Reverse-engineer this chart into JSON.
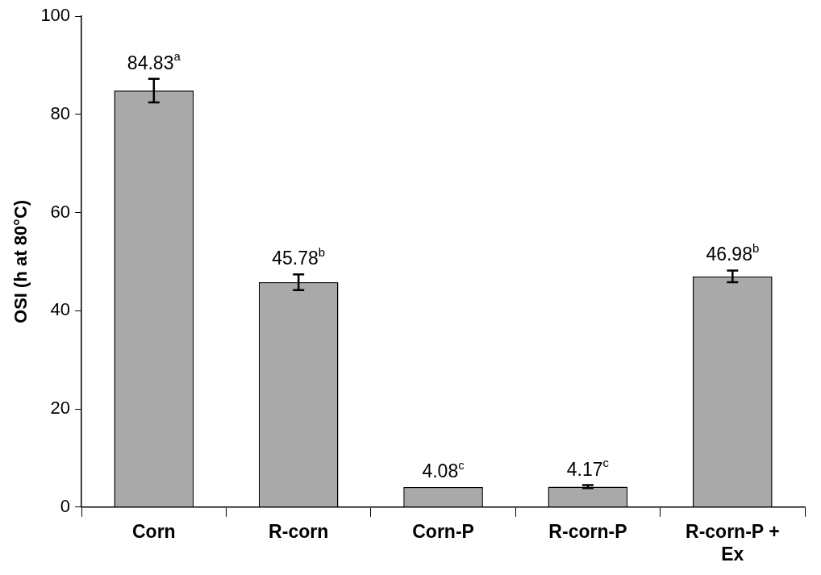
{
  "chart_data": {
    "type": "bar",
    "ylabel": "OSI (h at 80°C)",
    "categories": [
      "Corn",
      "R-corn",
      "Corn-P",
      "R-corn-P",
      "R-corn-P + Ex"
    ],
    "values": [
      84.83,
      45.78,
      4.08,
      4.17,
      46.98
    ],
    "errors": [
      2.4,
      1.6,
      null,
      0.3,
      1.2
    ],
    "value_labels": [
      "84.83$^{a}$",
      "45.78$^{b}$",
      "4.08$^{c}$",
      "4.17$^{c}$",
      "46.98$^{b}$"
    ],
    "color": "#a9a9a9",
    "ylim": [
      0,
      100
    ],
    "yticks": [
      0,
      20,
      40,
      60,
      80,
      100
    ],
    "grid": false,
    "legend": false
  }
}
